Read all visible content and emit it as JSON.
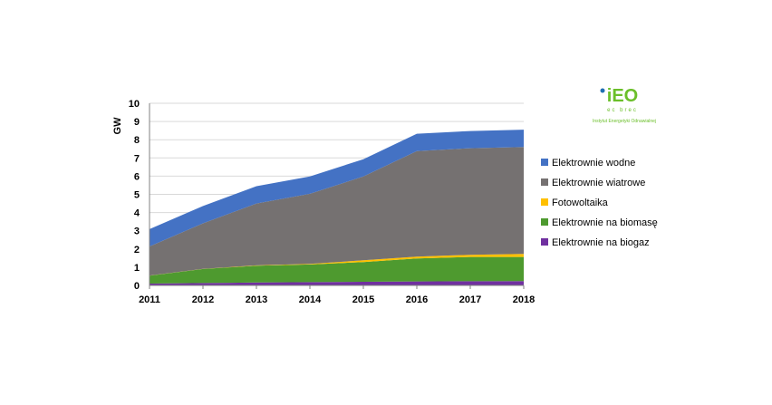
{
  "chart_data": {
    "type": "area",
    "stacked": true,
    "x": [
      "2011",
      "2012",
      "2013",
      "2014",
      "2015",
      "2016",
      "2017",
      "2018"
    ],
    "ylabel": "GW",
    "ylim": [
      0,
      10
    ],
    "yticks": [
      "0",
      "1",
      "2",
      "3",
      "4",
      "5",
      "6",
      "7",
      "8",
      "9",
      "10"
    ],
    "grid": true,
    "legend_position": "right",
    "series": [
      {
        "name": "Elektrownie na biogaz",
        "color": "#7030a0",
        "values": [
          0.1,
          0.13,
          0.16,
          0.18,
          0.2,
          0.22,
          0.23,
          0.24
        ]
      },
      {
        "name": "Elektrownie na biomasę",
        "color": "#4e9a2f",
        "values": [
          0.43,
          0.77,
          0.92,
          0.97,
          1.08,
          1.26,
          1.33,
          1.32
        ]
      },
      {
        "name": "Fotowoltaika",
        "color": "#ffc000",
        "values": [
          0.01,
          0.01,
          0.02,
          0.03,
          0.1,
          0.1,
          0.12,
          0.17
        ]
      },
      {
        "name": "Elektrownie wiatrowe",
        "color": "#757171",
        "values": [
          1.6,
          2.5,
          3.4,
          3.85,
          4.6,
          5.8,
          5.85,
          5.87
        ]
      },
      {
        "name": "Elektrownie wodne",
        "color": "#4472c4",
        "values": [
          0.95,
          0.95,
          0.95,
          0.95,
          0.95,
          0.95,
          0.95,
          0.95
        ]
      }
    ]
  },
  "legend_order": [
    "Elektrownie wodne",
    "Elektrownie wiatrowe",
    "Fotowoltaika",
    "Elektrownie na biomasę",
    "Elektrownie na biogaz"
  ],
  "logo": {
    "mark": "iEO",
    "sub": "ec brec",
    "tagline": "Instytut Energetyki Odnawialnej",
    "color": "#6bbf2a",
    "dot_color": "#1f6fb2"
  }
}
